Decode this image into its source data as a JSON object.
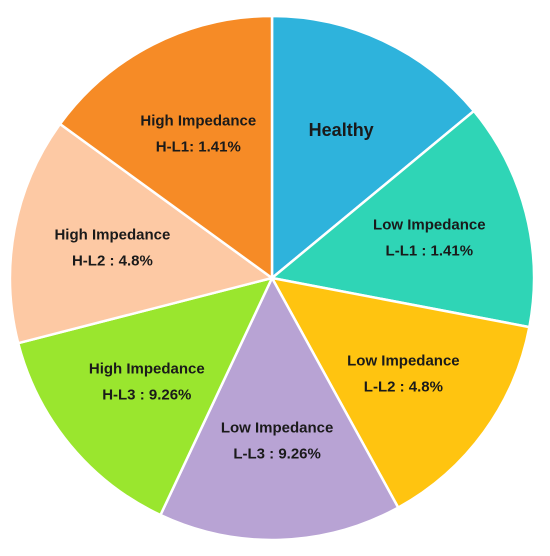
{
  "chart_data": {
    "type": "pie",
    "title": "",
    "slices": [
      {
        "name": "Healthy",
        "label_lines": [
          "Healthy"
        ],
        "value": 14.0,
        "color": "#2eb3dc"
      },
      {
        "name": "Low Impedance L-L1",
        "label_lines": [
          "Low Impedance",
          "L-L1 : 1.41%"
        ],
        "value": 14.0,
        "color": "#2fd5b6"
      },
      {
        "name": "Low Impedance L-L2",
        "label_lines": [
          "Low Impedance",
          "L-L2 : 4.8%"
        ],
        "value": 14.0,
        "color": "#ffc410"
      },
      {
        "name": "Low Impedance L-L3",
        "label_lines": [
          "Low Impedance",
          "L-L3 : 9.26%"
        ],
        "value": 15.0,
        "color": "#b8a3d4"
      },
      {
        "name": "High Impedance H-L3",
        "label_lines": [
          "High Impedance",
          "H-L3 : 9.26%"
        ],
        "value": 14.0,
        "color": "#9ae62e"
      },
      {
        "name": "High Impedance H-L2",
        "label_lines": [
          "High Impedance",
          "H-L2 : 4.8%"
        ],
        "value": 14.0,
        "color": "#fdc9a4"
      },
      {
        "name": "High Impedance H-L1",
        "label_lines": [
          "High Impedance",
          "H-L1: 1.41%"
        ],
        "value": 15.0,
        "color": "#f68b26"
      }
    ]
  }
}
